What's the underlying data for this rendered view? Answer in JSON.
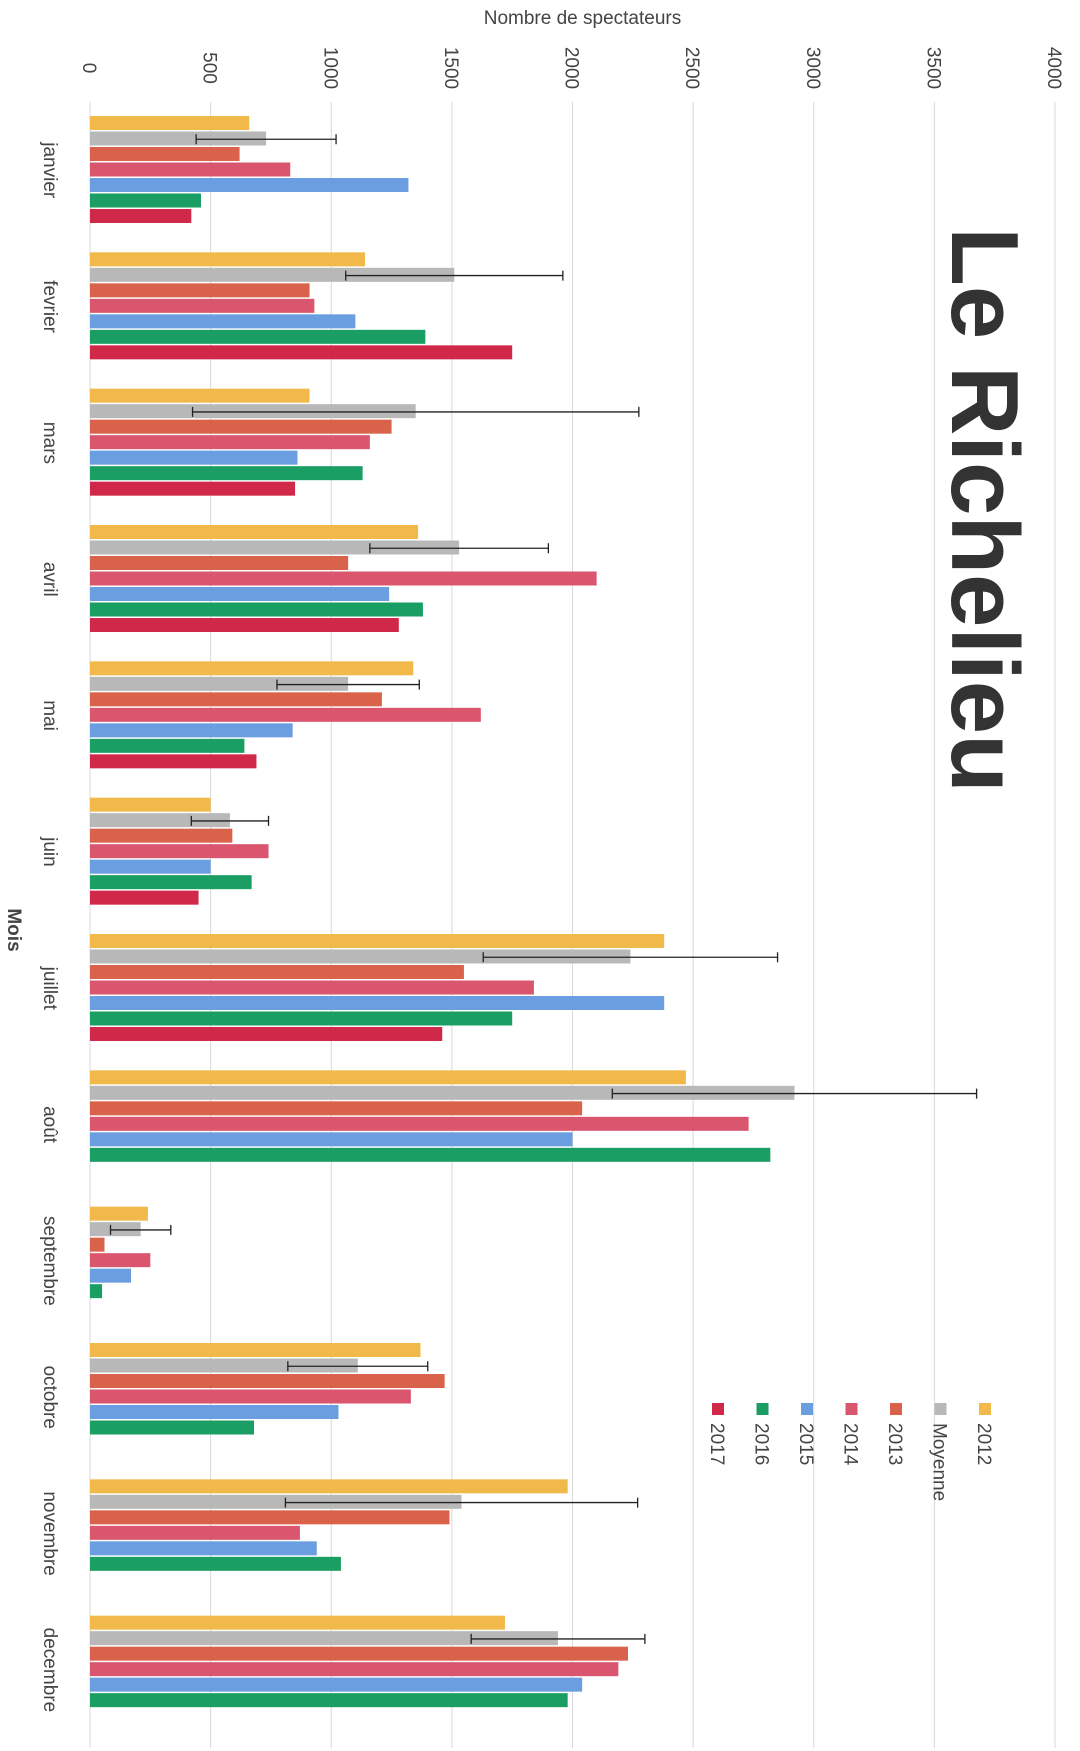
{
  "chart_data": {
    "type": "bar",
    "orientation": "horizontal",
    "logo": "Le Richelieu",
    "x_label": "Nombre de spectateurs",
    "y_label": "Mois",
    "categories": [
      "janvier",
      "fevrier",
      "mars",
      "avril",
      "mai",
      "juin",
      "juillet",
      "août",
      "septembre",
      "octobre",
      "novembre",
      "decembre"
    ],
    "xlim": [
      0,
      4000
    ],
    "xticks": [
      0,
      500,
      1000,
      1500,
      2000,
      2500,
      3000,
      3500,
      4000
    ],
    "grid": true,
    "series": [
      {
        "name": "2012",
        "color": "#f0b94a",
        "values": [
          660,
          1140,
          910,
          1360,
          1340,
          500,
          2380,
          2470,
          240,
          1370,
          1980,
          1720
        ]
      },
      {
        "name": "Moyenne",
        "color": "#b8b8b8",
        "values": [
          730,
          1510,
          1350,
          1530,
          1070,
          580,
          2240,
          2920,
          210,
          1110,
          1540,
          1940
        ],
        "errors": [
          290,
          450,
          925,
          370,
          295,
          160,
          610,
          755,
          125,
          290,
          730,
          360
        ]
      },
      {
        "name": "2013",
        "color": "#d9634a",
        "values": [
          620,
          910,
          1250,
          1070,
          1210,
          590,
          1550,
          2040,
          60,
          1470,
          1490,
          2230
        ]
      },
      {
        "name": "2014",
        "color": "#d9566e",
        "values": [
          830,
          930,
          1160,
          2100,
          1620,
          740,
          1840,
          2730,
          250,
          1330,
          870,
          2190
        ]
      },
      {
        "name": "2015",
        "color": "#6a9ee0",
        "values": [
          1320,
          1100,
          860,
          1240,
          840,
          500,
          2380,
          2000,
          170,
          1030,
          940,
          2040
        ]
      },
      {
        "name": "2016",
        "color": "#1a9e64",
        "values": [
          460,
          1390,
          1130,
          1380,
          640,
          670,
          1750,
          2820,
          50,
          680,
          1040,
          1980
        ]
      },
      {
        "name": "2017",
        "color": "#d02848",
        "values": [
          420,
          1750,
          850,
          1280,
          690,
          450,
          1460,
          null,
          null,
          null,
          null,
          null
        ]
      }
    ]
  }
}
